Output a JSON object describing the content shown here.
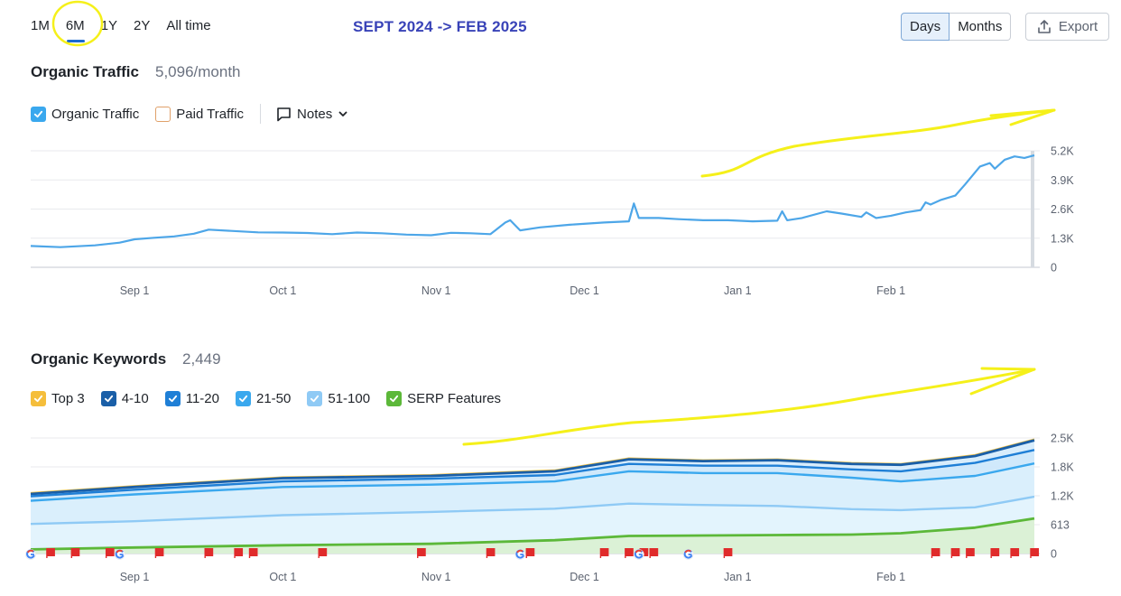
{
  "range_tabs": [
    {
      "label": "1M",
      "active": false
    },
    {
      "label": "6M",
      "active": true
    },
    {
      "label": "1Y",
      "active": false
    },
    {
      "label": "2Y",
      "active": false
    },
    {
      "label": "All time",
      "active": false
    }
  ],
  "annotation_title": "SEPT 2024 -> FEB 2025",
  "view_toggle": {
    "days": "Days",
    "months": "Months",
    "selected": "Days"
  },
  "export_label": "Export",
  "colors": {
    "traffic_line": "#4da6e8",
    "paid_box": "#e0a16a",
    "top3": "#f5be3b",
    "k4_10": "#1a5fa8",
    "k11_20": "#1f7fd6",
    "k21_50": "#3aa8ee",
    "k51_100": "#8fcaf5",
    "serp": "#5cb839",
    "annotation_yellow": "#f5f01a",
    "flag_red": "#e02b2b"
  },
  "organic_traffic": {
    "title": "Organic Traffic",
    "metric": "5,096/month",
    "legend": [
      {
        "label": "Organic Traffic",
        "checked": true,
        "color": "#3aa8ee"
      },
      {
        "label": "Paid Traffic",
        "checked": false,
        "color": "#e0a16a"
      }
    ],
    "notes_label": "Notes"
  },
  "organic_keywords": {
    "title": "Organic Keywords",
    "metric": "2,449",
    "legend": [
      {
        "label": "Top 3",
        "color": "#f5be3b"
      },
      {
        "label": "4-10",
        "color": "#1a5fa8"
      },
      {
        "label": "11-20",
        "color": "#1f7fd6"
      },
      {
        "label": "21-50",
        "color": "#3aa8ee"
      },
      {
        "label": "51-100",
        "color": "#8fcaf5"
      },
      {
        "label": "SERP Features",
        "color": "#5cb839"
      }
    ]
  },
  "chart_data": [
    {
      "type": "line",
      "x_ticks": [
        "Sep 1",
        "Oct 1",
        "Nov 1",
        "Dec 1",
        "Jan 1",
        "Feb 1"
      ],
      "y_ticks": [
        "0",
        "1.3K",
        "2.6K",
        "3.9K",
        "5.2K"
      ],
      "ylim": [
        0,
        5200
      ],
      "x_range_days": [
        -21,
        164
      ],
      "series": [
        {
          "points": [
            [
              -21,
              950
            ],
            [
              -15,
              900
            ],
            [
              -8,
              980
            ],
            [
              -3,
              1100
            ],
            [
              0,
              1250
            ],
            [
              4,
              1320
            ],
            [
              8,
              1380
            ],
            [
              12,
              1500
            ],
            [
              15,
              1680
            ],
            [
              20,
              1620
            ],
            [
              25,
              1560
            ],
            [
              30,
              1550
            ],
            [
              35,
              1530
            ],
            [
              40,
              1480
            ],
            [
              45,
              1550
            ],
            [
              50,
              1520
            ],
            [
              55,
              1460
            ],
            [
              60,
              1430
            ],
            [
              64,
              1540
            ],
            [
              68,
              1520
            ],
            [
              72,
              1480
            ],
            [
              75,
              2000
            ],
            [
              76,
              2100
            ],
            [
              78,
              1650
            ],
            [
              82,
              1780
            ],
            [
              88,
              1900
            ],
            [
              95,
              2000
            ],
            [
              100,
              2050
            ],
            [
              101,
              2850
            ],
            [
              102,
              2200
            ],
            [
              106,
              2200
            ],
            [
              110,
              2150
            ],
            [
              115,
              2100
            ],
            [
              120,
              2100
            ],
            [
              125,
              2050
            ],
            [
              130,
              2080
            ],
            [
              131,
              2500
            ],
            [
              132,
              2100
            ],
            [
              135,
              2200
            ],
            [
              140,
              2500
            ],
            [
              143,
              2400
            ],
            [
              147,
              2250
            ],
            [
              148,
              2450
            ],
            [
              150,
              2200
            ],
            [
              153,
              2300
            ],
            [
              156,
              2450
            ],
            [
              159,
              2550
            ],
            [
              160,
              2900
            ],
            [
              161,
              2800
            ],
            [
              163,
              3000
            ],
            [
              166,
              3200
            ],
            [
              168,
              3700
            ],
            [
              171,
              4500
            ],
            [
              173,
              4650
            ],
            [
              174,
              4400
            ],
            [
              176,
              4800
            ],
            [
              178,
              4950
            ],
            [
              180,
              4880
            ],
            [
              182,
              5000
            ]
          ]
        }
      ]
    },
    {
      "type": "area",
      "x_ticks": [
        "Sep 1",
        "Oct 1",
        "Nov 1",
        "Dec 1",
        "Jan 1",
        "Feb 1"
      ],
      "y_ticks": [
        "0",
        "613",
        "1.2K",
        "1.8K",
        "2.5K"
      ],
      "ylim": [
        0,
        2500
      ],
      "series": [
        {
          "name": "Top 3",
          "points": [
            [
              -21,
              1310
            ],
            [
              0,
              1460
            ],
            [
              30,
              1650
            ],
            [
              60,
              1700
            ],
            [
              85,
              1800
            ],
            [
              100,
              2060
            ],
            [
              115,
              2020
            ],
            [
              130,
              2040
            ],
            [
              145,
              1960
            ],
            [
              155,
              1940
            ],
            [
              170,
              2130
            ],
            [
              182,
              2470
            ]
          ]
        },
        {
          "name": "4-10",
          "points": [
            [
              -21,
              1290
            ],
            [
              0,
              1440
            ],
            [
              30,
              1630
            ],
            [
              60,
              1680
            ],
            [
              85,
              1780
            ],
            [
              100,
              2040
            ],
            [
              115,
              2000
            ],
            [
              130,
              2020
            ],
            [
              145,
              1940
            ],
            [
              155,
              1920
            ],
            [
              170,
              2110
            ],
            [
              182,
              2449
            ]
          ]
        },
        {
          "name": "11-20",
          "points": [
            [
              -21,
              1240
            ],
            [
              0,
              1380
            ],
            [
              30,
              1560
            ],
            [
              60,
              1620
            ],
            [
              85,
              1700
            ],
            [
              100,
              1940
            ],
            [
              115,
              1900
            ],
            [
              130,
              1900
            ],
            [
              145,
              1820
            ],
            [
              155,
              1780
            ],
            [
              170,
              1960
            ],
            [
              182,
              2240
            ]
          ]
        },
        {
          "name": "21-50",
          "points": [
            [
              -21,
              1140
            ],
            [
              0,
              1280
            ],
            [
              30,
              1440
            ],
            [
              60,
              1490
            ],
            [
              85,
              1560
            ],
            [
              100,
              1780
            ],
            [
              115,
              1740
            ],
            [
              130,
              1740
            ],
            [
              145,
              1640
            ],
            [
              155,
              1560
            ],
            [
              170,
              1680
            ],
            [
              182,
              1950
            ]
          ]
        },
        {
          "name": "51-100",
          "points": [
            [
              -21,
              640
            ],
            [
              0,
              700
            ],
            [
              30,
              830
            ],
            [
              60,
              900
            ],
            [
              85,
              970
            ],
            [
              100,
              1080
            ],
            [
              115,
              1050
            ],
            [
              130,
              1030
            ],
            [
              145,
              960
            ],
            [
              155,
              940
            ],
            [
              170,
              1000
            ],
            [
              182,
              1230
            ]
          ]
        },
        {
          "name": "SERP Features",
          "points": [
            [
              -21,
              90
            ],
            [
              0,
              130
            ],
            [
              30,
              180
            ],
            [
              60,
              210
            ],
            [
              85,
              290
            ],
            [
              100,
              380
            ],
            [
              115,
              390
            ],
            [
              130,
              400
            ],
            [
              145,
              410
            ],
            [
              155,
              440
            ],
            [
              170,
              560
            ],
            [
              182,
              760
            ]
          ]
        }
      ],
      "event_markers": {
        "flags_days": [
          -17,
          -12,
          -5,
          5,
          15,
          21,
          24,
          38,
          58,
          72,
          80,
          95,
          100,
          103,
          105,
          120,
          162,
          166,
          169,
          174,
          178,
          182
        ],
        "google_days": [
          -21,
          -3,
          78,
          102,
          112
        ]
      }
    }
  ]
}
